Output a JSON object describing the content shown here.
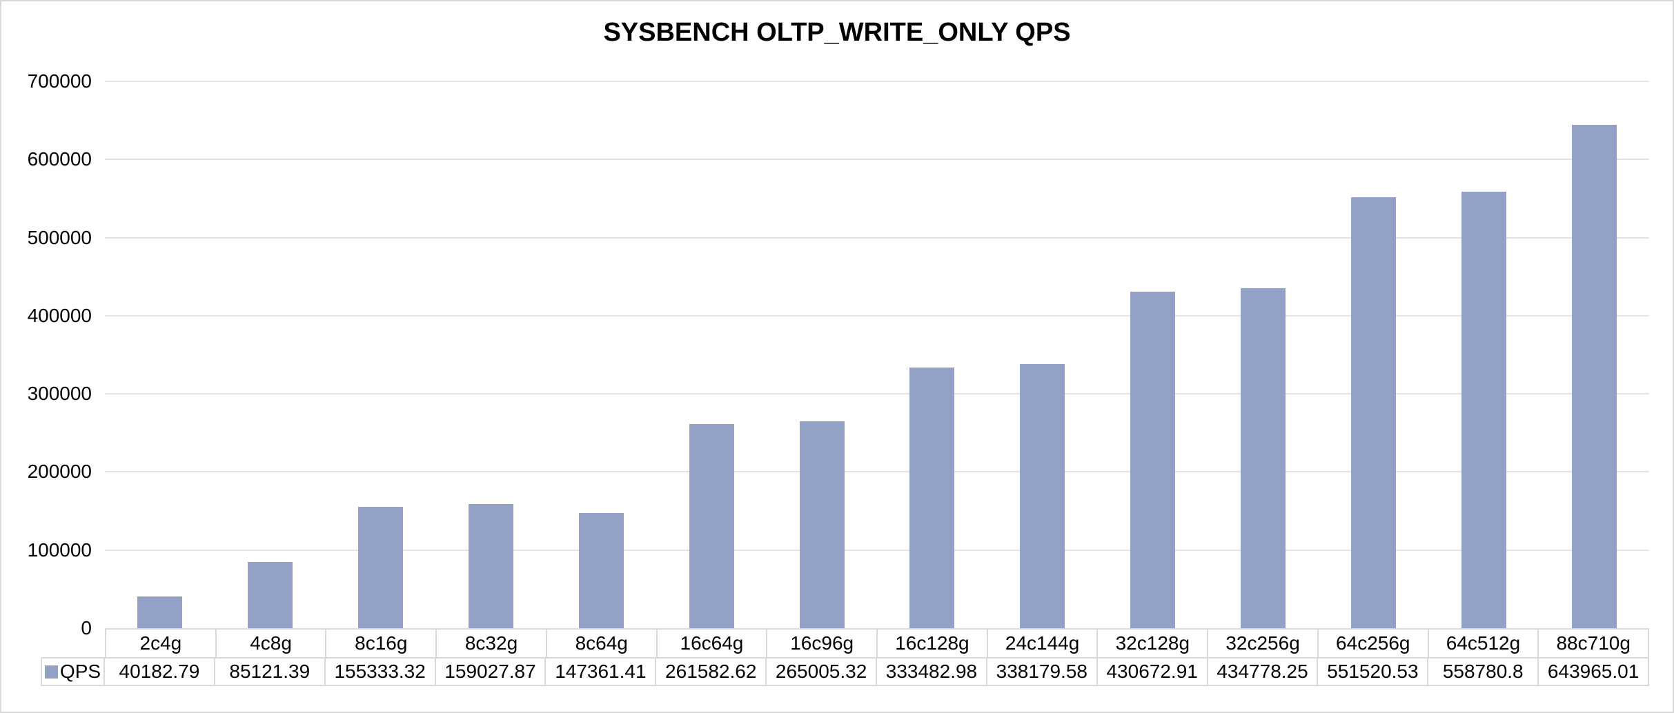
{
  "chart_data": {
    "type": "bar",
    "title": "SYSBENCH OLTP_WRITE_ONLY QPS",
    "categories": [
      "2c4g",
      "4c8g",
      "8c16g",
      "8c32g",
      "8c64g",
      "16c64g",
      "16c96g",
      "16c128g",
      "24c144g",
      "32c128g",
      "32c256g",
      "64c256g",
      "64c512g",
      "88c710g"
    ],
    "series": [
      {
        "name": "QPS",
        "values": [
          40182.79,
          85121.39,
          155333.32,
          159027.87,
          147361.41,
          261582.62,
          265005.32,
          333482.98,
          338179.58,
          430672.91,
          434778.25,
          551520.53,
          558780.8,
          643965.01
        ]
      }
    ],
    "value_labels": [
      "40182.79",
      "85121.39",
      "155333.32",
      "159027.87",
      "147361.41",
      "261582.62",
      "265005.32",
      "333482.98",
      "338179.58",
      "430672.91",
      "434778.25",
      "551520.53",
      "558780.8",
      "643965.01"
    ],
    "xlabel": "",
    "ylabel": "",
    "ylim": [
      0,
      700000
    ],
    "y_ticks": [
      0,
      100000,
      200000,
      300000,
      400000,
      500000,
      600000,
      700000
    ],
    "y_tick_labels": [
      "0",
      "100000",
      "200000",
      "300000",
      "400000",
      "500000",
      "600000",
      "700000"
    ],
    "grid": "horizontal",
    "legend": {
      "label": "QPS",
      "position": "bottom-left-table"
    },
    "colors": {
      "bar_fill": "#93a1c6",
      "gridline": "#e4e4e4",
      "table_border": "#d9d9d9",
      "text": "#000000",
      "background": "#ffffff"
    }
  }
}
